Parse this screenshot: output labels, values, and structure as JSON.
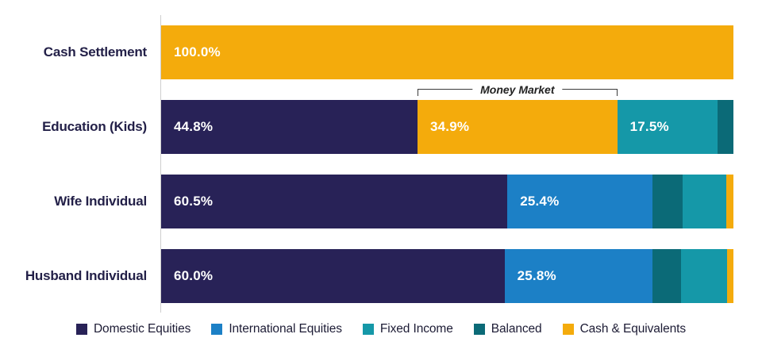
{
  "chart_data": {
    "type": "bar",
    "orientation": "horizontal",
    "stacked": true,
    "title": "",
    "xlabel": "",
    "ylabel": "",
    "xlim": [
      0,
      100
    ],
    "grid": false,
    "legend_position": "bottom",
    "categories": [
      "Cash Settlement",
      "Education (Kids)",
      "Wife Individual",
      "Husband Individual"
    ],
    "legend": [
      {
        "label": "Domestic Equities",
        "color": "#282257"
      },
      {
        "label": "International Equities",
        "color": "#1C80C6"
      },
      {
        "label": "Fixed Income",
        "color": "#1598A8"
      },
      {
        "label": "Balanced",
        "color": "#0B6A77"
      },
      {
        "label": "Cash & Equivalents",
        "color": "#F4AB0C"
      }
    ],
    "rows": [
      {
        "label": "Cash Settlement",
        "segments": [
          {
            "series": "Cash & Equivalents",
            "value": 100.0,
            "label": "100.0%"
          }
        ]
      },
      {
        "label": "Education (Kids)",
        "segments": [
          {
            "series": "Domestic Equities",
            "value": 44.8,
            "label": "44.8%"
          },
          {
            "series": "Cash & Equivalents",
            "value": 34.9,
            "label": "34.9%",
            "annotation": "Money Market"
          },
          {
            "series": "Fixed Income",
            "value": 17.5,
            "label": "17.5%"
          },
          {
            "series": "Balanced",
            "value": 2.8
          }
        ]
      },
      {
        "label": "Wife Individual",
        "segments": [
          {
            "series": "Domestic Equities",
            "value": 60.5,
            "label": "60.5%"
          },
          {
            "series": "International Equities",
            "value": 25.4,
            "label": "25.4%"
          },
          {
            "series": "Balanced",
            "value": 5.2
          },
          {
            "series": "Fixed Income",
            "value": 7.7
          },
          {
            "series": "Cash & Equivalents",
            "value": 1.2
          }
        ]
      },
      {
        "label": "Husband Individual",
        "segments": [
          {
            "series": "Domestic Equities",
            "value": 60.0,
            "label": "60.0%"
          },
          {
            "series": "International Equities",
            "value": 25.8,
            "label": "25.8%"
          },
          {
            "series": "Balanced",
            "value": 5.1
          },
          {
            "series": "Fixed Income",
            "value": 8.0
          },
          {
            "series": "Cash & Equivalents",
            "value": 1.1
          }
        ]
      }
    ],
    "annotation": {
      "text": "Money Market",
      "row": "Education (Kids)",
      "segment": "Cash & Equivalents"
    }
  },
  "styles": {
    "background": "#ffffff",
    "axis_color": "#cfcfcf",
    "category_label_color": "#232048",
    "value_label_color": "#ffffff",
    "annotation_line_color": "#3b3b3b",
    "annotation_text_color": "#222222",
    "legend_text_color": "#1d1c35"
  }
}
